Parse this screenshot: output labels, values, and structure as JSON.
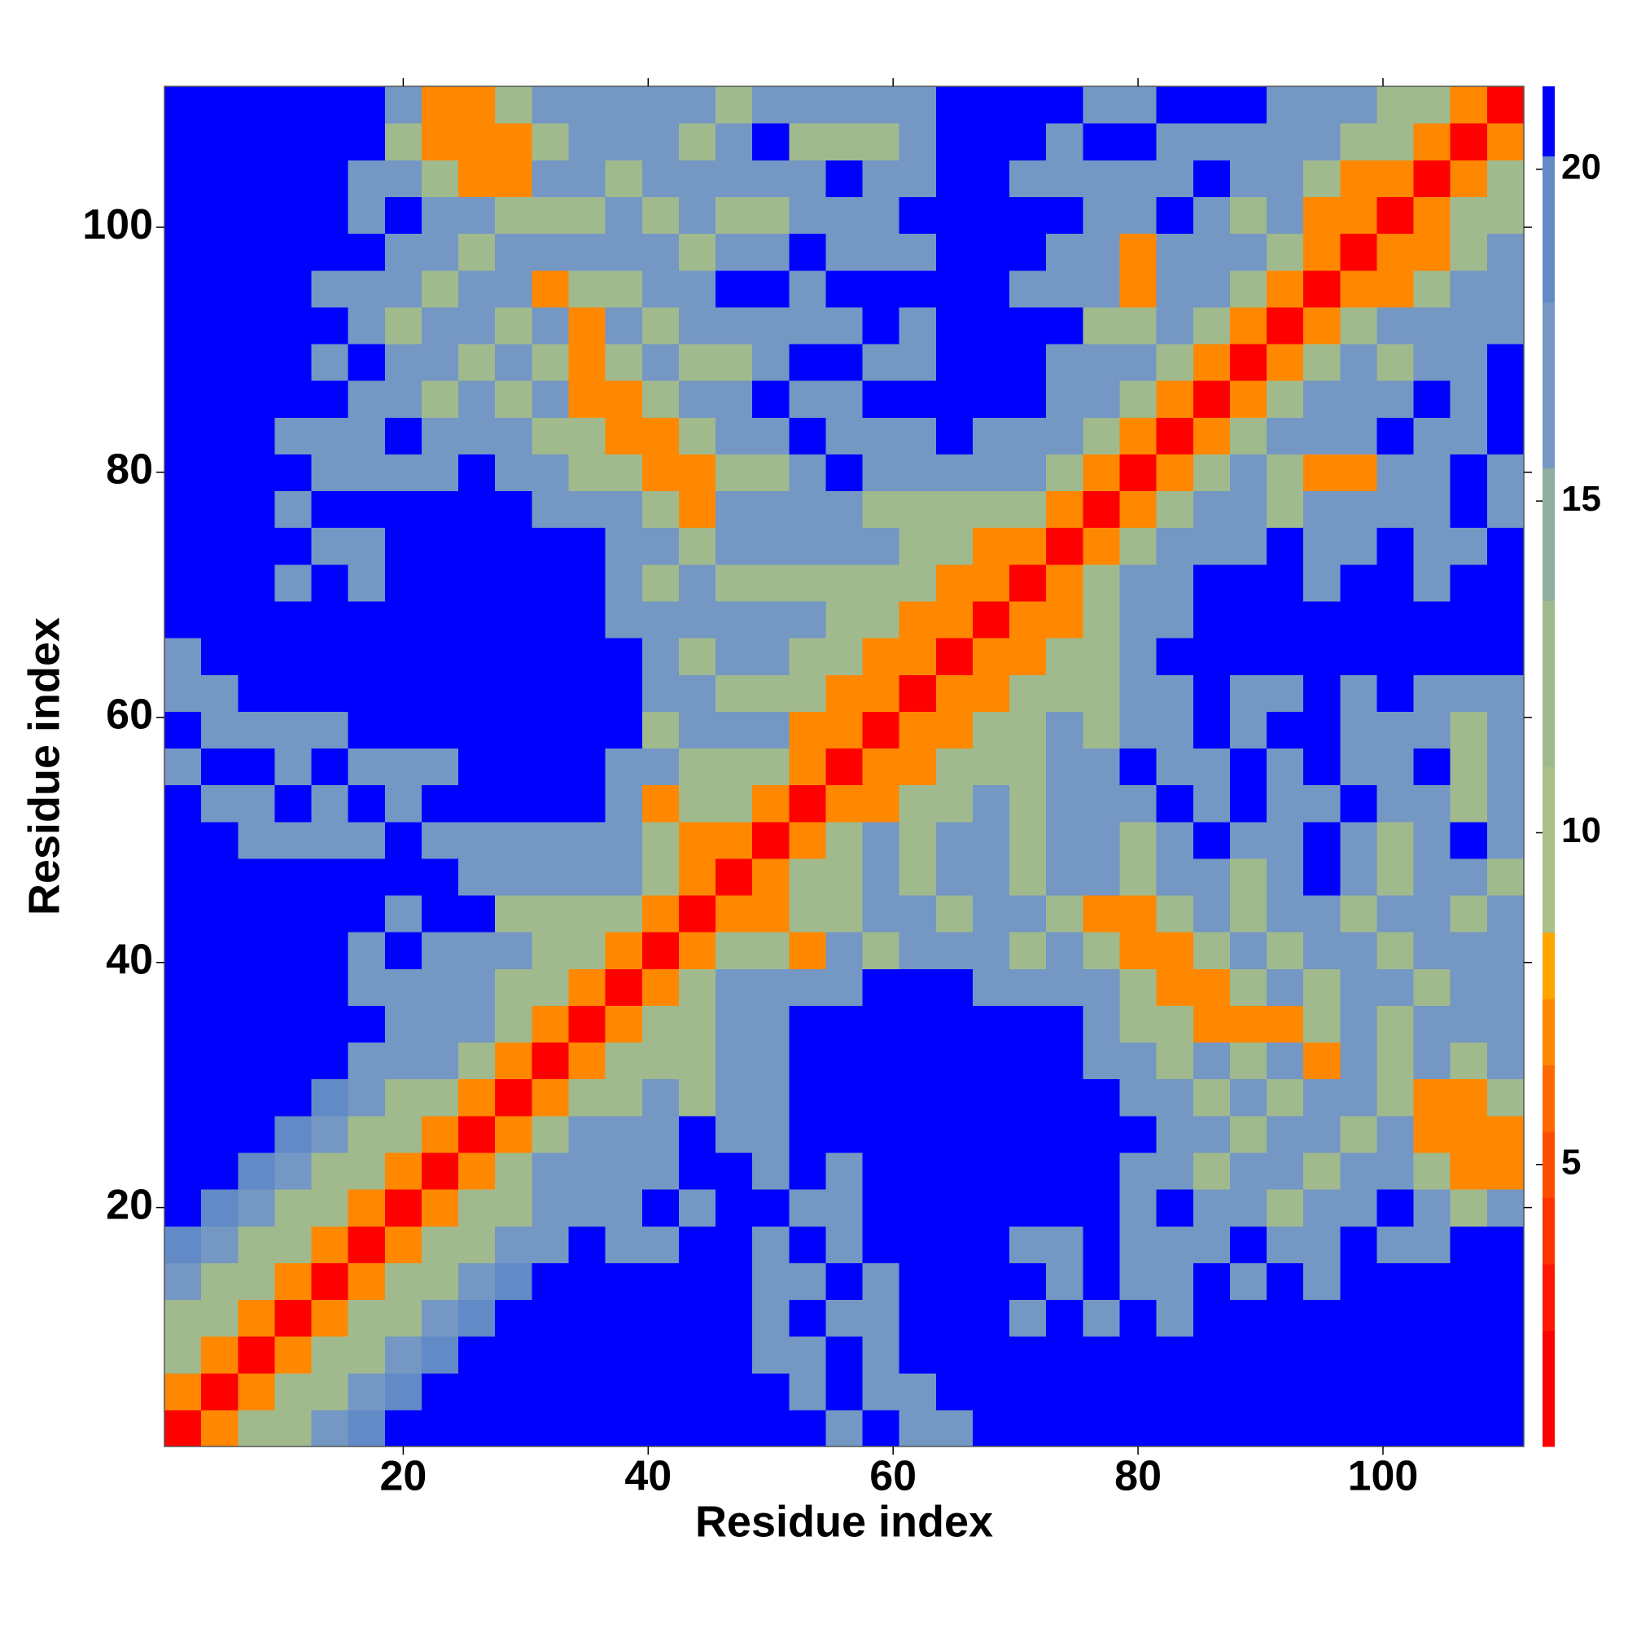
{
  "chart_data": {
    "type": "heatmap",
    "xlabel": "Residue index",
    "ylabel": "Residue index",
    "x": [
      2,
      5,
      8,
      11,
      14,
      17,
      20,
      23,
      26,
      29,
      32,
      35,
      38,
      41,
      44,
      47,
      50,
      53,
      56,
      59,
      62,
      65,
      68,
      71,
      74,
      77,
      80,
      83,
      86,
      89,
      92,
      95,
      98,
      101,
      104,
      107,
      110
    ],
    "y": [
      2,
      5,
      8,
      11,
      14,
      17,
      20,
      23,
      26,
      29,
      32,
      35,
      38,
      41,
      44,
      47,
      50,
      53,
      56,
      59,
      62,
      65,
      68,
      71,
      74,
      77,
      80,
      83,
      86,
      89,
      92,
      95,
      98,
      101,
      104,
      107,
      110
    ],
    "cell_size": 3,
    "xlim": [
      0.5,
      111.5
    ],
    "ylim": [
      0.5,
      111.5
    ],
    "xticks": [
      20,
      40,
      60,
      80,
      100
    ],
    "yticks": [
      20,
      40,
      60,
      80,
      100
    ],
    "colorbar": {
      "bounds": [
        0.75,
        2.5,
        3.5,
        4.5,
        5.5,
        6.5,
        7.5,
        8.5,
        11,
        13.5,
        15.5,
        18,
        20.2,
        21.25
      ],
      "colors": [
        "#ff0000",
        "#ff1800",
        "#ff3300",
        "#ff4d00",
        "#ff6a00",
        "#ff8800",
        "#ffa500",
        "#aabf8a",
        "#a0ba8e",
        "#8fae9f",
        "#7497c4",
        "#628ac6",
        "#0000ff"
      ],
      "ticks": [
        5,
        10,
        15,
        20
      ]
    },
    "z": [
      [
        2,
        7,
        11,
        12,
        16,
        19,
        21,
        21,
        21,
        21,
        21,
        21,
        21,
        21,
        21,
        21,
        21,
        21,
        16,
        21,
        16,
        16,
        21,
        21,
        21,
        21,
        21,
        21,
        21,
        21,
        21,
        21,
        21,
        21,
        21,
        21,
        21
      ],
      [
        7,
        2,
        7,
        11,
        12,
        16,
        19,
        21,
        21,
        21,
        21,
        21,
        21,
        21,
        21,
        21,
        21,
        16,
        21,
        16,
        16,
        21,
        21,
        21,
        21,
        21,
        21,
        21,
        21,
        21,
        21,
        21,
        21,
        21,
        21,
        21,
        21
      ],
      [
        11,
        7,
        2,
        7,
        11,
        12,
        16,
        19,
        21,
        21,
        21,
        21,
        21,
        21,
        21,
        21,
        16,
        16,
        21,
        16,
        21,
        21,
        21,
        21,
        21,
        21,
        21,
        21,
        21,
        21,
        21,
        21,
        21,
        21,
        21,
        21,
        21
      ],
      [
        12,
        11,
        7,
        2,
        7,
        11,
        12,
        16,
        19,
        21,
        21,
        21,
        21,
        21,
        21,
        21,
        16,
        21,
        16,
        16,
        21,
        21,
        21,
        16,
        21,
        16,
        21,
        16,
        21,
        21,
        21,
        21,
        21,
        21,
        21,
        21,
        21
      ],
      [
        16,
        12,
        11,
        7,
        2,
        7,
        11,
        12,
        16,
        19,
        21,
        21,
        21,
        21,
        21,
        21,
        16,
        16,
        21,
        16,
        21,
        21,
        21,
        21,
        16,
        21,
        16,
        16,
        21,
        16,
        21,
        16,
        21,
        21,
        21,
        21,
        21
      ],
      [
        19,
        16,
        12,
        11,
        7,
        2,
        7,
        11,
        12,
        16,
        16,
        21,
        16,
        16,
        21,
        21,
        16,
        21,
        16,
        21,
        21,
        21,
        21,
        16,
        16,
        21,
        16,
        16,
        16,
        21,
        16,
        16,
        21,
        16,
        16,
        21,
        21
      ],
      [
        21,
        19,
        16,
        12,
        11,
        7,
        2,
        7,
        11,
        12,
        16,
        16,
        16,
        21,
        16,
        21,
        21,
        16,
        16,
        21,
        21,
        21,
        21,
        21,
        21,
        21,
        16,
        21,
        16,
        16,
        12,
        16,
        16,
        21,
        16,
        12,
        16
      ],
      [
        21,
        21,
        19,
        16,
        12,
        11,
        7,
        2,
        7,
        12,
        16,
        16,
        16,
        16,
        21,
        21,
        16,
        21,
        16,
        21,
        21,
        21,
        21,
        21,
        21,
        21,
        16,
        16,
        12,
        16,
        16,
        12,
        16,
        16,
        12,
        7,
        7
      ],
      [
        21,
        21,
        21,
        19,
        16,
        12,
        11,
        7,
        2,
        7,
        12,
        16,
        16,
        16,
        21,
        16,
        16,
        21,
        21,
        21,
        21,
        21,
        21,
        21,
        21,
        21,
        21,
        16,
        16,
        12,
        16,
        16,
        12,
        16,
        7,
        7,
        7
      ],
      [
        21,
        21,
        21,
        21,
        19,
        16,
        12,
        12,
        7,
        2,
        7,
        12,
        12,
        16,
        12,
        16,
        16,
        21,
        21,
        21,
        21,
        21,
        21,
        21,
        21,
        21,
        16,
        16,
        12,
        16,
        12,
        16,
        16,
        12,
        7,
        7,
        12
      ],
      [
        21,
        21,
        21,
        21,
        21,
        16,
        16,
        16,
        12,
        7,
        2,
        7,
        12,
        12,
        12,
        16,
        16,
        21,
        21,
        21,
        21,
        21,
        21,
        21,
        21,
        16,
        16,
        12,
        16,
        12,
        16,
        7,
        16,
        12,
        16,
        12,
        16
      ],
      [
        21,
        21,
        21,
        21,
        21,
        21,
        16,
        16,
        16,
        12,
        7,
        2,
        7,
        12,
        12,
        16,
        16,
        21,
        21,
        21,
        21,
        21,
        21,
        21,
        21,
        16,
        12,
        12,
        7,
        7,
        7,
        12,
        16,
        12,
        16,
        16,
        16
      ],
      [
        21,
        21,
        21,
        21,
        21,
        16,
        16,
        16,
        16,
        12,
        12,
        7,
        2,
        7,
        12,
        16,
        16,
        16,
        16,
        21,
        21,
        21,
        16,
        16,
        16,
        16,
        12,
        7,
        7,
        12,
        16,
        12,
        16,
        16,
        12,
        16,
        16
      ],
      [
        21,
        21,
        21,
        21,
        21,
        16,
        21,
        16,
        16,
        16,
        12,
        12,
        7,
        2,
        7,
        12,
        12,
        7,
        16,
        12,
        16,
        16,
        16,
        12,
        16,
        12,
        7,
        7,
        12,
        16,
        12,
        16,
        16,
        12,
        16,
        16,
        16
      ],
      [
        21,
        21,
        21,
        21,
        21,
        21,
        16,
        21,
        21,
        12,
        12,
        12,
        12,
        7,
        2,
        7,
        7,
        12,
        12,
        16,
        16,
        12,
        16,
        16,
        12,
        7,
        7,
        12,
        16,
        12,
        16,
        16,
        12,
        16,
        16,
        12,
        16
      ],
      [
        21,
        21,
        21,
        21,
        21,
        21,
        21,
        21,
        16,
        16,
        16,
        16,
        16,
        12,
        7,
        2,
        7,
        12,
        12,
        16,
        12,
        16,
        16,
        12,
        16,
        16,
        12,
        16,
        16,
        12,
        16,
        21,
        16,
        12,
        16,
        16,
        12
      ],
      [
        21,
        21,
        16,
        16,
        16,
        16,
        21,
        16,
        16,
        16,
        16,
        16,
        16,
        12,
        7,
        7,
        2,
        7,
        12,
        16,
        12,
        16,
        16,
        12,
        16,
        16,
        12,
        16,
        21,
        16,
        16,
        21,
        16,
        12,
        16,
        21,
        16
      ],
      [
        21,
        16,
        16,
        21,
        16,
        21,
        16,
        21,
        21,
        21,
        21,
        21,
        16,
        7,
        12,
        12,
        7,
        2,
        7,
        7,
        12,
        12,
        16,
        12,
        16,
        16,
        16,
        21,
        16,
        21,
        16,
        16,
        21,
        16,
        16,
        12,
        16
      ],
      [
        16,
        21,
        21,
        16,
        21,
        16,
        16,
        16,
        21,
        21,
        21,
        21,
        16,
        16,
        12,
        12,
        12,
        7,
        2,
        7,
        7,
        12,
        12,
        12,
        16,
        16,
        21,
        16,
        16,
        21,
        16,
        21,
        16,
        16,
        21,
        12,
        16
      ],
      [
        21,
        16,
        16,
        16,
        16,
        21,
        21,
        21,
        21,
        21,
        21,
        21,
        21,
        12,
        16,
        16,
        16,
        7,
        7,
        2,
        7,
        7,
        12,
        12,
        16,
        12,
        16,
        16,
        21,
        16,
        21,
        21,
        16,
        16,
        16,
        12,
        16
      ],
      [
        16,
        16,
        21,
        21,
        21,
        21,
        21,
        21,
        21,
        21,
        21,
        21,
        21,
        16,
        16,
        12,
        12,
        12,
        7,
        7,
        2,
        7,
        7,
        12,
        12,
        12,
        16,
        16,
        21,
        16,
        16,
        21,
        16,
        21,
        16,
        16,
        16
      ],
      [
        16,
        21,
        21,
        21,
        21,
        21,
        21,
        21,
        21,
        21,
        21,
        21,
        21,
        16,
        12,
        16,
        16,
        12,
        12,
        7,
        7,
        2,
        7,
        7,
        12,
        12,
        16,
        21,
        21,
        21,
        21,
        21,
        21,
        21,
        21,
        21,
        21
      ],
      [
        21,
        21,
        21,
        21,
        21,
        21,
        21,
        21,
        21,
        21,
        21,
        21,
        16,
        16,
        16,
        16,
        16,
        16,
        12,
        12,
        7,
        7,
        2,
        7,
        7,
        12,
        16,
        16,
        21,
        21,
        21,
        21,
        21,
        21,
        21,
        21,
        21
      ],
      [
        21,
        21,
        21,
        16,
        21,
        16,
        21,
        21,
        21,
        21,
        21,
        21,
        16,
        12,
        16,
        12,
        12,
        12,
        12,
        12,
        12,
        7,
        7,
        2,
        7,
        12,
        16,
        16,
        21,
        21,
        21,
        16,
        21,
        21,
        16,
        21,
        21
      ],
      [
        21,
        21,
        21,
        21,
        16,
        16,
        21,
        21,
        21,
        21,
        21,
        21,
        16,
        16,
        12,
        16,
        16,
        16,
        16,
        16,
        12,
        12,
        7,
        7,
        2,
        7,
        12,
        16,
        16,
        16,
        21,
        16,
        16,
        21,
        16,
        16,
        21
      ],
      [
        21,
        21,
        21,
        16,
        21,
        21,
        21,
        21,
        21,
        21,
        16,
        16,
        16,
        12,
        7,
        16,
        16,
        16,
        16,
        12,
        12,
        12,
        12,
        12,
        7,
        2,
        7,
        12,
        16,
        16,
        12,
        16,
        16,
        16,
        16,
        21,
        16
      ],
      [
        21,
        21,
        21,
        21,
        16,
        16,
        16,
        16,
        21,
        16,
        16,
        12,
        12,
        7,
        7,
        12,
        12,
        16,
        21,
        16,
        16,
        16,
        16,
        16,
        12,
        7,
        2,
        7,
        12,
        16,
        12,
        7,
        7,
        16,
        16,
        21,
        16
      ],
      [
        21,
        21,
        21,
        16,
        16,
        16,
        21,
        16,
        16,
        16,
        12,
        12,
        7,
        7,
        12,
        16,
        16,
        21,
        16,
        16,
        16,
        21,
        16,
        16,
        16,
        12,
        7,
        2,
        7,
        12,
        16,
        16,
        16,
        21,
        16,
        16,
        21
      ],
      [
        21,
        21,
        21,
        21,
        21,
        16,
        16,
        12,
        16,
        12,
        16,
        7,
        7,
        12,
        16,
        16,
        21,
        16,
        16,
        21,
        21,
        21,
        21,
        21,
        16,
        16,
        12,
        7,
        2,
        7,
        12,
        16,
        16,
        16,
        21,
        16,
        21
      ],
      [
        21,
        21,
        21,
        21,
        16,
        21,
        16,
        16,
        12,
        16,
        12,
        7,
        12,
        16,
        12,
        12,
        16,
        21,
        21,
        16,
        16,
        21,
        21,
        21,
        16,
        16,
        16,
        12,
        7,
        2,
        7,
        12,
        16,
        12,
        16,
        16,
        21
      ],
      [
        21,
        21,
        21,
        21,
        21,
        16,
        12,
        16,
        16,
        12,
        16,
        7,
        16,
        12,
        16,
        16,
        16,
        16,
        16,
        21,
        16,
        21,
        21,
        21,
        21,
        12,
        12,
        16,
        12,
        7,
        2,
        7,
        12,
        16,
        16,
        16,
        16
      ],
      [
        21,
        21,
        21,
        21,
        16,
        16,
        16,
        12,
        16,
        16,
        7,
        12,
        12,
        16,
        16,
        21,
        21,
        16,
        21,
        21,
        21,
        21,
        21,
        16,
        16,
        16,
        7,
        16,
        16,
        12,
        7,
        2,
        7,
        7,
        12,
        16,
        16
      ],
      [
        21,
        21,
        21,
        21,
        21,
        21,
        16,
        16,
        12,
        16,
        16,
        16,
        16,
        16,
        12,
        16,
        16,
        21,
        16,
        16,
        16,
        21,
        21,
        21,
        16,
        16,
        7,
        16,
        16,
        16,
        12,
        7,
        2,
        7,
        7,
        12,
        16
      ],
      [
        21,
        21,
        21,
        21,
        21,
        16,
        21,
        16,
        16,
        12,
        12,
        12,
        16,
        12,
        16,
        12,
        12,
        16,
        16,
        16,
        21,
        21,
        21,
        21,
        21,
        16,
        16,
        21,
        16,
        12,
        16,
        7,
        7,
        2,
        7,
        12,
        12
      ],
      [
        21,
        21,
        21,
        21,
        21,
        16,
        16,
        12,
        7,
        7,
        16,
        16,
        12,
        16,
        16,
        16,
        16,
        16,
        21,
        16,
        16,
        21,
        21,
        16,
        16,
        16,
        16,
        16,
        21,
        16,
        16,
        12,
        7,
        7,
        2,
        7,
        12
      ],
      [
        21,
        21,
        21,
        21,
        21,
        21,
        12,
        7,
        7,
        7,
        12,
        16,
        16,
        16,
        12,
        16,
        21,
        12,
        12,
        12,
        16,
        21,
        21,
        21,
        16,
        21,
        21,
        16,
        16,
        16,
        16,
        16,
        12,
        12,
        7,
        2,
        7
      ],
      [
        21,
        21,
        21,
        21,
        21,
        21,
        16,
        7,
        7,
        12,
        16,
        16,
        16,
        16,
        16,
        12,
        16,
        16,
        16,
        16,
        16,
        21,
        21,
        21,
        21,
        16,
        16,
        21,
        21,
        21,
        16,
        16,
        16,
        12,
        12,
        7,
        2
      ]
    ]
  }
}
